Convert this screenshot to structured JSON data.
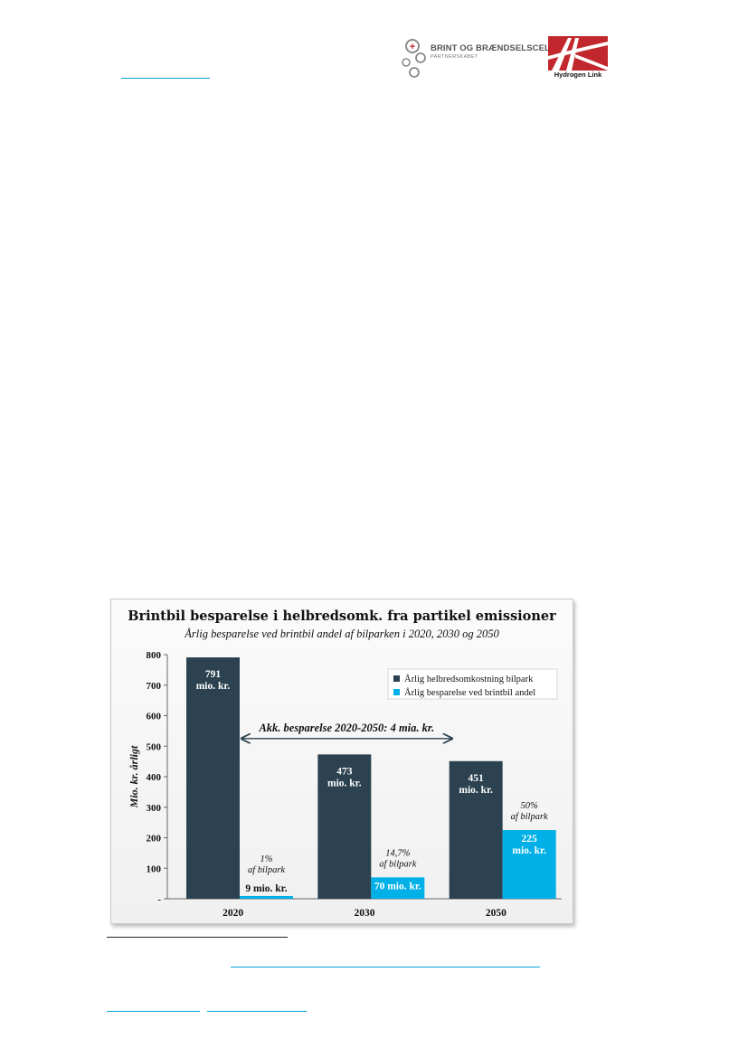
{
  "header": {
    "brint_logo": {
      "name": "BRINT OG BRÆNDSELSCELLER",
      "sub": "PARTNERSKABET",
      "plus_symbol": "+"
    },
    "hydrogen_link_logo": {
      "name": "Hydrogen Link"
    }
  },
  "colors": {
    "dark_bar": "#2c4250",
    "light_bar": "#00b0e6",
    "link": "#00a7d3"
  },
  "chart_data": {
    "type": "bar",
    "title": "Brintbil besparelse i helbredsomk. fra partikel emissioner",
    "subtitle": "Årlig besparelse ved brintbil andel af bilparken i 2020, 2030 og 2050",
    "xlabel": "",
    "ylabel": "Mio. kr. årligt",
    "ylim": [
      0,
      800
    ],
    "yticks": [
      "-",
      "100",
      "200",
      "300",
      "400",
      "500",
      "600",
      "700",
      "800"
    ],
    "categories": [
      "2020",
      "2030",
      "2050"
    ],
    "series": [
      {
        "name": "Årlig helbredsomkostning bilpark",
        "color": "#2c4250",
        "values": [
          791,
          473,
          451
        ]
      },
      {
        "name": "Årlig besparelse ved brintbil andel",
        "color": "#00b0e6",
        "values": [
          9,
          70,
          225
        ]
      }
    ],
    "data_labels": {
      "dark": [
        [
          "791",
          "mio. kr."
        ],
        [
          "473",
          "mio. kr."
        ],
        [
          "451",
          "mio. kr."
        ]
      ],
      "light": [
        [
          "9 mio. kr."
        ],
        [
          "70 mio. kr."
        ],
        [
          "225",
          "mio. kr."
        ]
      ]
    },
    "share_labels": [
      [
        "1%",
        "af bilpark"
      ],
      [
        "14,7%",
        "af bilpark"
      ],
      [
        "50%",
        "af bilpark"
      ]
    ],
    "annotation": "Akk. besparelse 2020-2050: 4 mia. kr.",
    "grid": false,
    "legend_position": "top-right"
  }
}
